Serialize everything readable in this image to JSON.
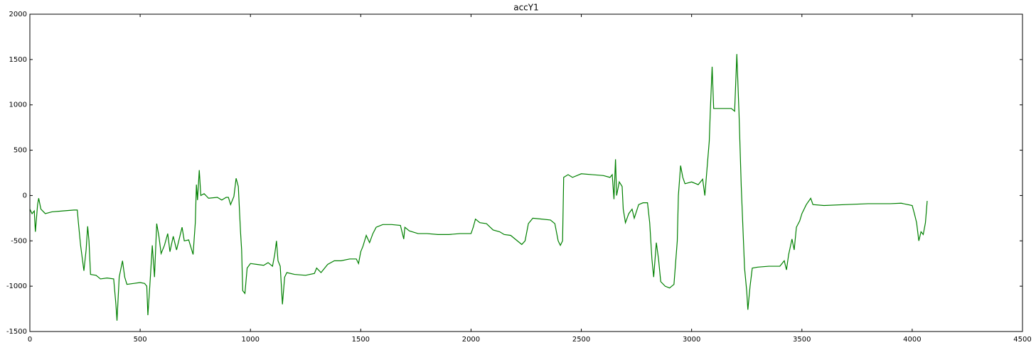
{
  "chart_data": {
    "type": "line",
    "title": "accY1",
    "x": [
      0,
      10,
      20,
      25,
      35,
      40,
      50,
      70,
      100,
      150,
      200,
      215,
      220,
      230,
      245,
      255,
      262,
      268,
      275,
      300,
      320,
      350,
      380,
      390,
      395,
      405,
      420,
      430,
      440,
      470,
      500,
      520,
      530,
      535,
      545,
      555,
      565,
      570,
      575,
      585,
      595,
      610,
      625,
      635,
      650,
      665,
      690,
      700,
      720,
      740,
      750,
      755,
      760,
      768,
      775,
      790,
      810,
      850,
      870,
      890,
      900,
      910,
      925,
      935,
      945,
      955,
      960,
      965,
      975,
      985,
      1000,
      1030,
      1060,
      1080,
      1100,
      1110,
      1118,
      1125,
      1135,
      1145,
      1155,
      1165,
      1200,
      1250,
      1290,
      1300,
      1320,
      1350,
      1380,
      1410,
      1450,
      1480,
      1490,
      1500,
      1510,
      1525,
      1540,
      1555,
      1570,
      1600,
      1640,
      1680,
      1695,
      1700,
      1720,
      1760,
      1800,
      1850,
      1900,
      1950,
      2000,
      2010,
      2020,
      2040,
      2070,
      2100,
      2130,
      2150,
      2180,
      2200,
      2230,
      2245,
      2260,
      2280,
      2320,
      2360,
      2380,
      2395,
      2405,
      2415,
      2420,
      2440,
      2460,
      2500,
      2550,
      2600,
      2630,
      2640,
      2648,
      2655,
      2660,
      2672,
      2685,
      2690,
      2700,
      2715,
      2730,
      2740,
      2760,
      2780,
      2800,
      2810,
      2820,
      2828,
      2840,
      2850,
      2860,
      2880,
      2900,
      2920,
      2935,
      2940,
      2950,
      2960,
      2970,
      3000,
      3030,
      3050,
      3060,
      3070,
      3080,
      3085,
      3093,
      3100,
      3150,
      3180,
      3195,
      3205,
      3215,
      3225,
      3240,
      3250,
      3255,
      3265,
      3275,
      3300,
      3350,
      3400,
      3420,
      3430,
      3440,
      3455,
      3465,
      3475,
      3490,
      3500,
      3520,
      3540,
      3550,
      3600,
      3700,
      3800,
      3900,
      3950,
      4000,
      4010,
      4020,
      4030,
      4040,
      4050,
      4060,
      4068
    ],
    "series": [
      {
        "color": "#008000",
        "values": [
          -150,
          -200,
          -170,
          -400,
          -100,
          -30,
          -150,
          -200,
          -180,
          -170,
          -160,
          -160,
          -300,
          -550,
          -830,
          -600,
          -340,
          -500,
          -870,
          -880,
          -920,
          -910,
          -920,
          -1200,
          -1380,
          -900,
          -720,
          -900,
          -980,
          -970,
          -960,
          -970,
          -1000,
          -1320,
          -950,
          -550,
          -900,
          -600,
          -310,
          -450,
          -640,
          -550,
          -420,
          -620,
          -450,
          -600,
          -350,
          -500,
          -490,
          -650,
          -300,
          120,
          -50,
          280,
          0,
          20,
          -30,
          -20,
          -50,
          -20,
          -20,
          -100,
          -10,
          190,
          100,
          -400,
          -600,
          -1050,
          -1080,
          -800,
          -750,
          -760,
          -770,
          -740,
          -780,
          -650,
          -500,
          -720,
          -780,
          -1200,
          -900,
          -850,
          -870,
          -880,
          -860,
          -800,
          -850,
          -760,
          -720,
          -720,
          -700,
          -700,
          -750,
          -620,
          -560,
          -440,
          -520,
          -420,
          -350,
          -320,
          -320,
          -330,
          -480,
          -350,
          -390,
          -420,
          -420,
          -430,
          -430,
          -420,
          -420,
          -350,
          -260,
          -300,
          -310,
          -380,
          -400,
          -430,
          -440,
          -480,
          -540,
          -500,
          -310,
          -250,
          -260,
          -270,
          -310,
          -500,
          -550,
          -500,
          200,
          230,
          200,
          240,
          230,
          220,
          200,
          230,
          -40,
          400,
          0,
          150,
          100,
          -150,
          -300,
          -200,
          -150,
          -250,
          -100,
          -80,
          -80,
          -300,
          -700,
          -900,
          -520,
          -700,
          -950,
          -1000,
          -1020,
          -980,
          -500,
          0,
          330,
          200,
          130,
          150,
          120,
          180,
          0,
          300,
          600,
          950,
          1420,
          960,
          960,
          960,
          930,
          1560,
          900,
          100,
          -800,
          -1060,
          -1260,
          -1000,
          -800,
          -790,
          -780,
          -780,
          -720,
          -820,
          -650,
          -480,
          -600,
          -350,
          -280,
          -200,
          -100,
          -30,
          -100,
          -110,
          -100,
          -90,
          -90,
          -85,
          -110,
          -200,
          -300,
          -500,
          -400,
          -430,
          -300,
          -60
        ]
      }
    ],
    "xlim": [
      0,
      4500
    ],
    "xticks": [
      0,
      500,
      1000,
      1500,
      2000,
      2500,
      3000,
      3500,
      4000,
      4500
    ],
    "ylim": [
      -1500,
      2000
    ],
    "yticks": [
      -1500,
      -1000,
      -500,
      0,
      500,
      1000,
      1500,
      2000
    ]
  }
}
